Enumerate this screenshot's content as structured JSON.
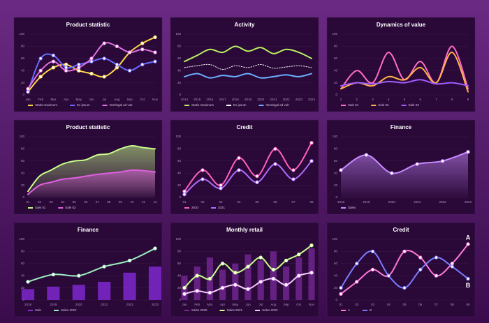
{
  "chart_data": [
    {
      "type": "line",
      "title": "Product statistic",
      "markers": true,
      "grid": true,
      "categories": [
        "Jan",
        "Feb",
        "Mar",
        "Apr",
        "May",
        "Jun",
        "Jul",
        "Aug",
        "Sep",
        "Oct",
        "Nov"
      ],
      "ylim": [
        0,
        100
      ],
      "yticks": [
        0,
        20,
        40,
        60,
        80,
        100
      ],
      "series": [
        {
          "name": "Statis maximum",
          "color": "#ffd84a",
          "values": [
            5,
            30,
            45,
            50,
            40,
            35,
            30,
            45,
            70,
            85,
            95
          ]
        },
        {
          "name": "Ex ipsum",
          "color": "#6a6cff",
          "values": [
            5,
            60,
            65,
            45,
            50,
            55,
            60,
            50,
            40,
            50,
            55
          ]
        },
        {
          "name": "Interlegal ad vult",
          "color": "#e070e0",
          "values": [
            10,
            40,
            55,
            40,
            45,
            60,
            85,
            80,
            70,
            75,
            70
          ]
        }
      ]
    },
    {
      "type": "line",
      "title": "Activity",
      "markers": false,
      "grid": true,
      "categories": [
        "2014",
        "2015",
        "2016",
        "2017",
        "2018",
        "2019",
        "2020",
        "2021",
        "2022",
        "2023",
        "2024"
      ],
      "ylim": [
        0,
        100
      ],
      "yticks": [
        0,
        20,
        40,
        60,
        80,
        100
      ],
      "series": [
        {
          "name": "Statis maximum",
          "color": "#b8f060",
          "values": [
            55,
            65,
            75,
            70,
            80,
            72,
            78,
            68,
            75,
            70,
            60
          ]
        },
        {
          "name": "Ex ipsum",
          "color": "#ffffff",
          "dash": true,
          "values": [
            45,
            48,
            50,
            42,
            48,
            45,
            50,
            44,
            46,
            48,
            45
          ]
        },
        {
          "name": "Interlegal ad vult",
          "color": "#6ab0ff",
          "values": [
            30,
            35,
            28,
            32,
            30,
            35,
            28,
            30,
            33,
            30,
            35
          ]
        }
      ]
    },
    {
      "type": "line",
      "title": "Dynamics of value",
      "markers": false,
      "grid": true,
      "categories": [
        "1",
        "2",
        "3",
        "4",
        "5",
        "6",
        "7",
        "8",
        "9"
      ],
      "ylim": [
        0,
        100
      ],
      "yticks": [
        0,
        20,
        40,
        60,
        80,
        100
      ],
      "series": [
        {
          "name": "Sale 01",
          "color": "#ff6ec7",
          "values": [
            10,
            40,
            20,
            70,
            25,
            55,
            20,
            80,
            10
          ]
        },
        {
          "name": "Sale 02",
          "color": "#ffb347",
          "values": [
            10,
            20,
            15,
            30,
            25,
            45,
            20,
            70,
            5
          ]
        },
        {
          "name": "Sale 03",
          "color": "#a05cff",
          "values": [
            15,
            20,
            18,
            22,
            20,
            25,
            18,
            20,
            15
          ]
        }
      ]
    },
    {
      "type": "area",
      "title": "Product statistic",
      "markers": false,
      "grid": true,
      "categories": [
        "01",
        "02",
        "03",
        "04",
        "05",
        "06",
        "07",
        "08",
        "09",
        "10",
        "11",
        "12"
      ],
      "ylim": [
        0,
        100
      ],
      "yticks": [
        0,
        20,
        40,
        60,
        80,
        100
      ],
      "series": [
        {
          "name": "Sale 01",
          "color": "#c8ff8a",
          "values": [
            10,
            35,
            45,
            55,
            60,
            62,
            70,
            72,
            80,
            85,
            82,
            80
          ]
        },
        {
          "name": "Sale 02",
          "color": "#e060e0",
          "values": [
            5,
            20,
            25,
            30,
            32,
            35,
            38,
            40,
            42,
            45,
            44,
            42
          ]
        }
      ]
    },
    {
      "type": "line",
      "title": "Credit",
      "markers": true,
      "grid": true,
      "categories": [
        "01",
        "02",
        "03",
        "04",
        "05",
        "06",
        "07",
        "08"
      ],
      "ylim": [
        0,
        100
      ],
      "yticks": [
        0,
        20,
        40,
        60,
        80,
        100
      ],
      "series": [
        {
          "name": "2020",
          "color": "#ff5fc0",
          "values": [
            10,
            45,
            20,
            65,
            35,
            80,
            45,
            90
          ]
        },
        {
          "name": "2021",
          "color": "#b06cff",
          "values": [
            5,
            30,
            15,
            45,
            25,
            55,
            30,
            60
          ]
        }
      ]
    },
    {
      "type": "area",
      "title": "Finance",
      "markers": true,
      "grid": true,
      "categories": [
        "2018",
        "2019",
        "2020",
        "2021",
        "2022",
        "2023"
      ],
      "ylim": [
        0,
        100
      ],
      "yticks": [
        0,
        20,
        40,
        60,
        80,
        100
      ],
      "series": [
        {
          "name": "Sales",
          "color": "#c88aff",
          "values": [
            45,
            70,
            40,
            55,
            60,
            75
          ]
        }
      ]
    },
    {
      "type": "line",
      "title": "Finance",
      "markers": true,
      "grid": true,
      "categories": [
        "2018",
        "2019",
        "2020",
        "2021",
        "2022",
        "2023"
      ],
      "ylim": [
        0,
        100
      ],
      "yticks": [
        0,
        20,
        40,
        60,
        80,
        100
      ],
      "series": [
        {
          "name": "Sale",
          "color": "#8a2be2",
          "kind": "bar",
          "values": [
            18,
            22,
            25,
            30,
            45,
            55
          ]
        },
        {
          "name": "Sales 2022",
          "color": "#9ef0c0",
          "values": [
            30,
            42,
            40,
            55,
            65,
            85
          ]
        }
      ]
    },
    {
      "type": "line",
      "title": "Monthly retail",
      "markers": true,
      "grid": true,
      "categories": [
        "Jan",
        "Feb",
        "Mar",
        "Apr",
        "May",
        "Jun",
        "Jul",
        "Aug",
        "Sep",
        "Oct",
        "Nov"
      ],
      "ylim": [
        0,
        100
      ],
      "yticks": [
        0,
        20,
        40,
        60,
        80,
        100
      ],
      "series": [
        {
          "name": "Sales 2020",
          "color": "#7a2a9a",
          "kind": "bar",
          "values": [
            40,
            55,
            70,
            50,
            60,
            75,
            65,
            80,
            55,
            70,
            85
          ]
        },
        {
          "name": "Sales 2021",
          "color": "#c8ff8a",
          "values": [
            20,
            40,
            35,
            60,
            45,
            55,
            70,
            50,
            65,
            75,
            90
          ]
        },
        {
          "name": "Sales 2022",
          "color": "#f6c8ff",
          "values": [
            10,
            15,
            12,
            20,
            25,
            18,
            30,
            35,
            25,
            40,
            45
          ]
        }
      ]
    },
    {
      "type": "line",
      "title": "Credit",
      "markers": true,
      "endlabels": true,
      "grid": true,
      "categories": [
        "01",
        "02",
        "03",
        "04",
        "05",
        "06",
        "07",
        "08",
        "09"
      ],
      "ylim": [
        0,
        100
      ],
      "yticks": [
        0,
        20,
        40,
        60,
        80,
        100
      ],
      "series": [
        {
          "name": "A",
          "color": "#ff7ad9",
          "values": [
            10,
            30,
            50,
            40,
            80,
            70,
            40,
            60,
            92
          ]
        },
        {
          "name": "B",
          "color": "#7a7cff",
          "values": [
            20,
            60,
            80,
            40,
            20,
            50,
            70,
            55,
            35
          ]
        }
      ]
    }
  ]
}
